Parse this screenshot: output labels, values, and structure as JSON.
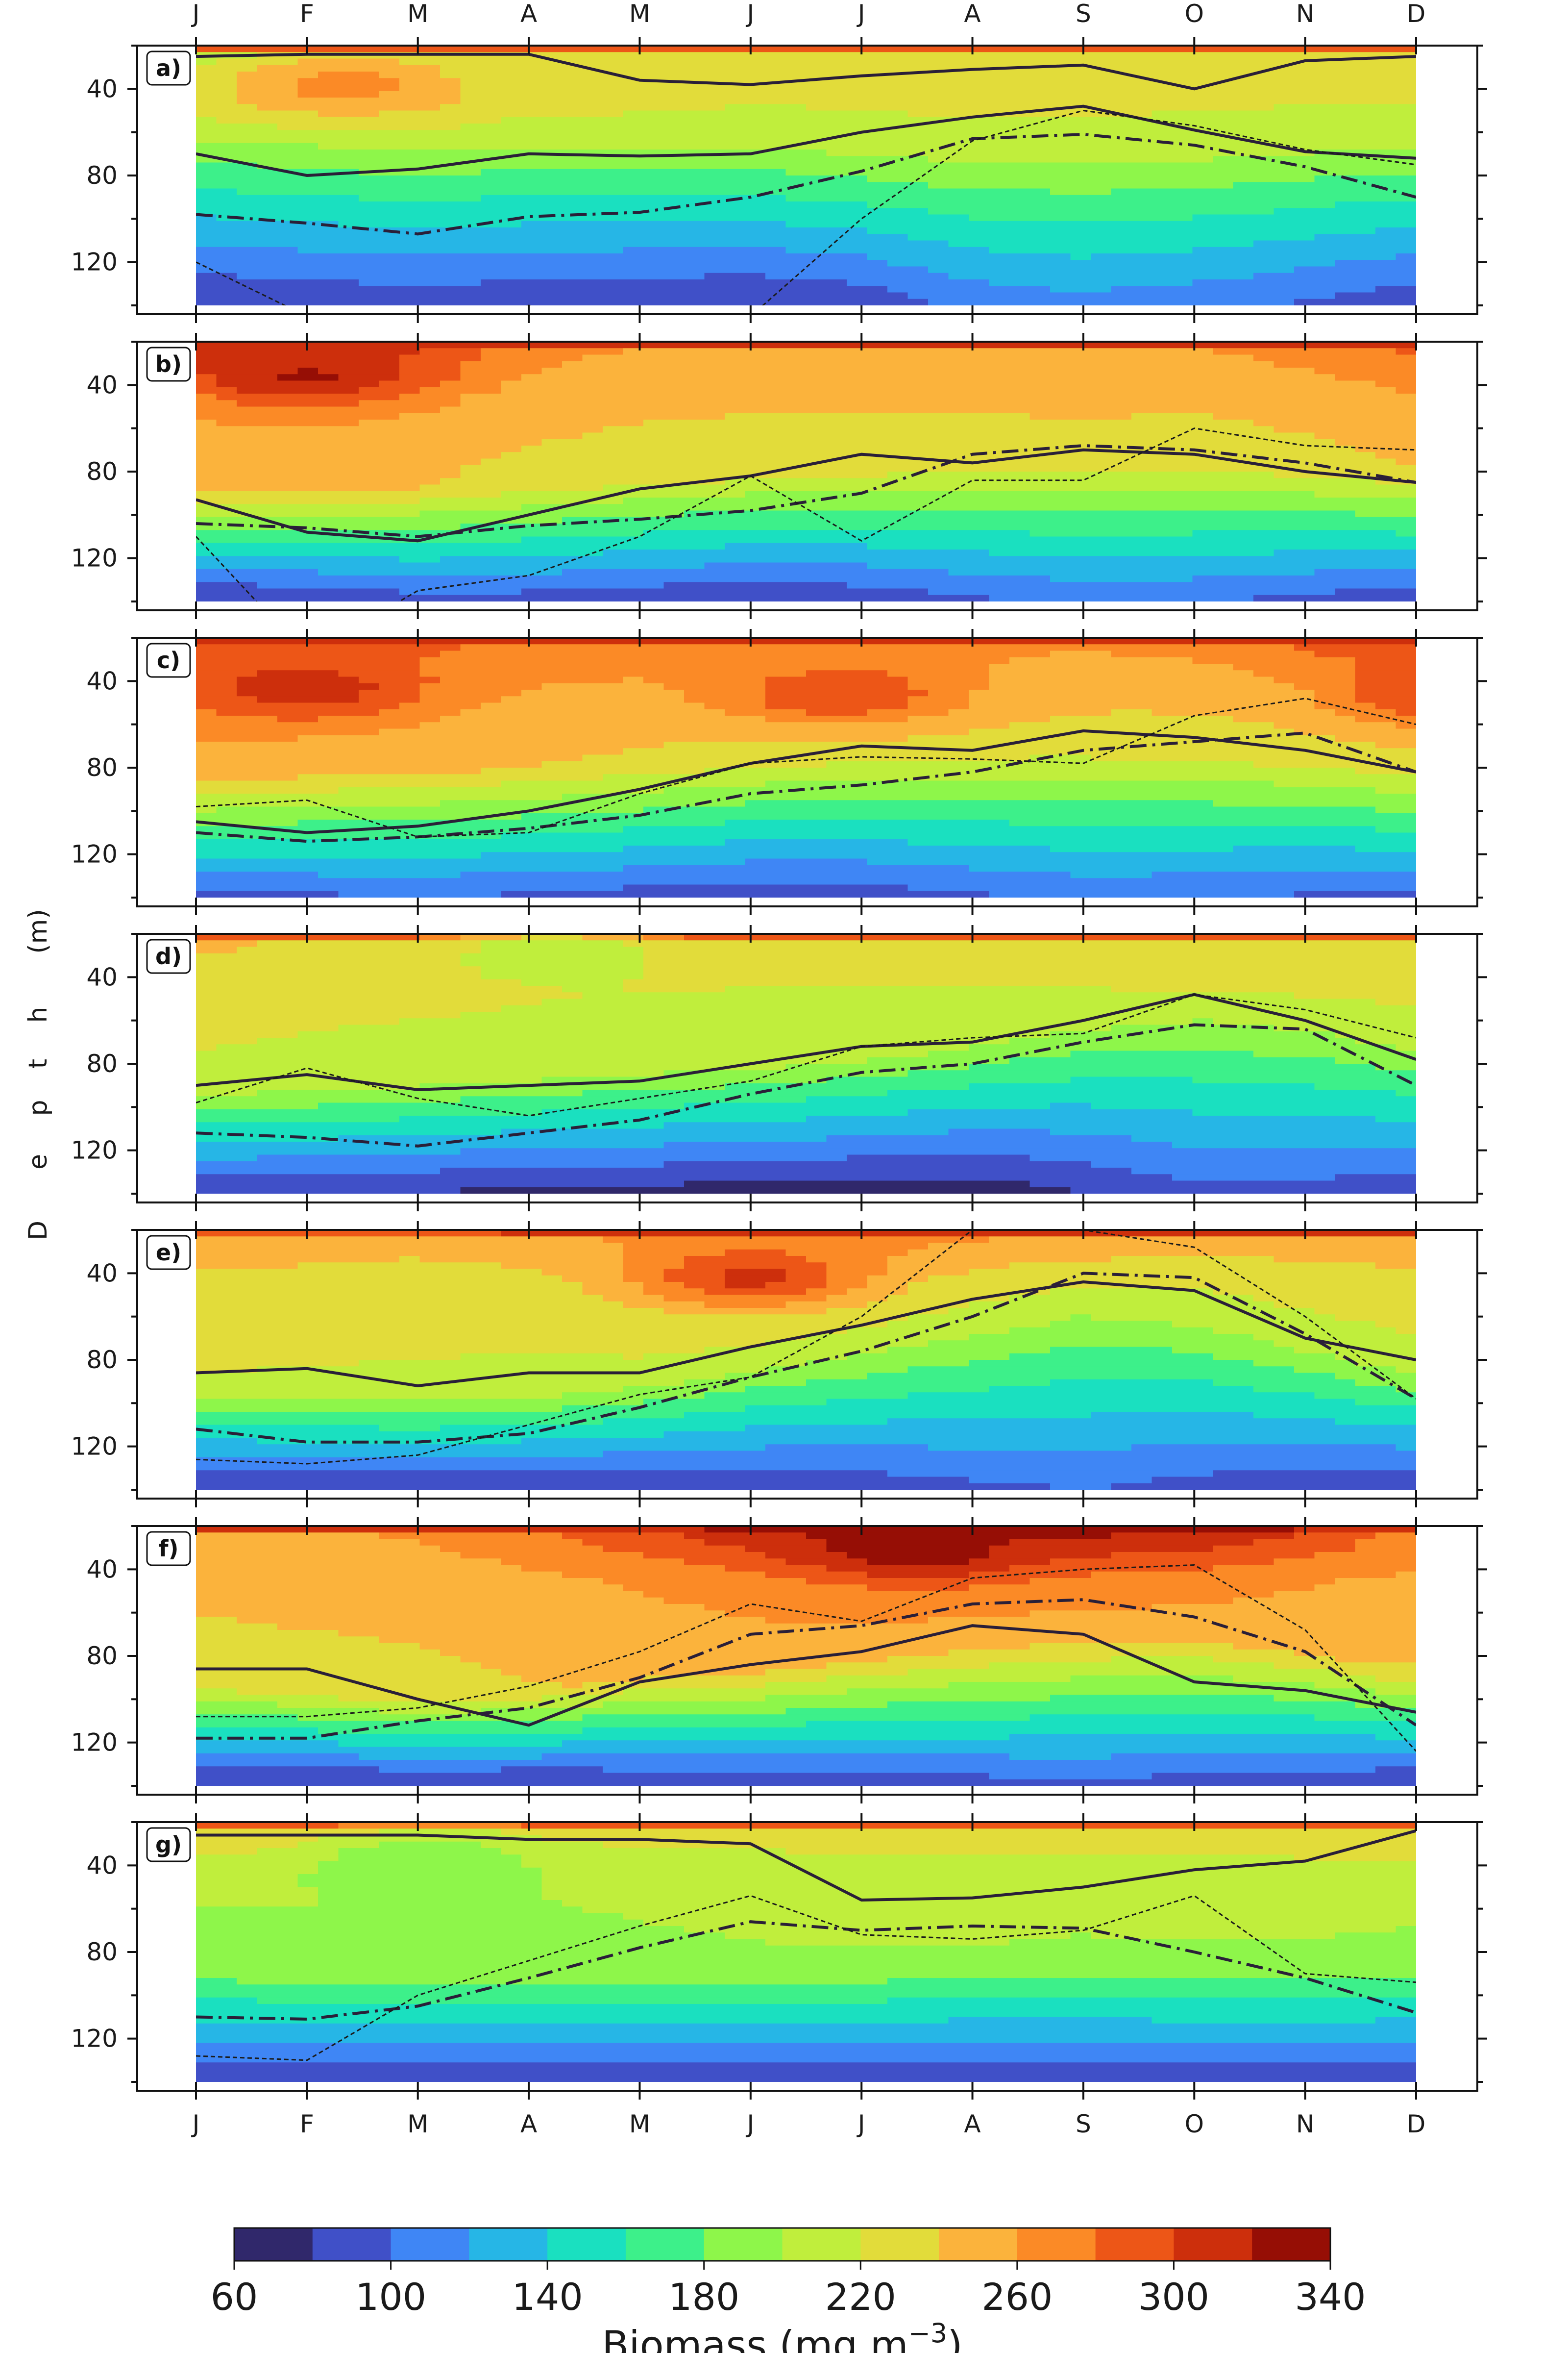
{
  "chart_data": {
    "type": "heatmap",
    "months": [
      "J",
      "F",
      "M",
      "A",
      "M",
      "J",
      "J",
      "A",
      "S",
      "O",
      "N",
      "D"
    ],
    "depth_ticks": [
      40,
      80,
      120
    ],
    "ylim": [
      20,
      140
    ],
    "ylabel_letters": [
      "D",
      "e",
      "p",
      "t",
      "h",
      "(m)"
    ],
    "colorbar": {
      "levels": [
        60,
        80,
        100,
        120,
        140,
        160,
        180,
        200,
        220,
        240,
        260,
        280,
        300,
        320,
        340
      ],
      "tick_labels": [
        "60",
        "100",
        "140",
        "180",
        "220",
        "260",
        "300",
        "340"
      ],
      "label": "Biomass (mg m",
      "label_exponent": "−3",
      "label_close": ")",
      "colors": [
        "#30286b",
        "#4050c8",
        "#3f86f5",
        "#26b6e6",
        "#1ae0c0",
        "#3df08a",
        "#8ef64a",
        "#c0ee3c",
        "#e2dc3a",
        "#fbb33c",
        "#fb8a26",
        "#ed5617",
        "#cd2f0c",
        "#960e05"
      ]
    },
    "panels": [
      {
        "label": "a)",
        "surface": [
          200,
          210,
          216,
          220,
          222,
          222,
          222,
          224,
          226,
          226,
          224,
          222
        ],
        "mid": [
          225,
          230,
          232,
          228,
          226,
          222,
          224,
          226,
          226,
          224,
          222,
          222
        ],
        "dcm_depth": [
          60,
          60,
          62,
          62,
          64,
          66,
          68,
          70,
          70,
          70,
          68,
          66
        ],
        "deep": [
          130,
          126,
          124,
          126,
          128,
          130,
          124,
          110,
          104,
          108,
          116,
          124
        ],
        "features": [
          {
            "month": 1.3,
            "depth": 38,
            "value": 268
          }
        ],
        "solid_line": [
          25,
          24,
          24,
          24,
          36,
          38,
          34,
          31,
          29,
          40,
          27,
          25
        ],
        "solid_line2": [
          70,
          80,
          77,
          70,
          71,
          70,
          60,
          53,
          48,
          59,
          69,
          72
        ],
        "dashdot_line": [
          98,
          102,
          107,
          99,
          97,
          90,
          78,
          63,
          61,
          66,
          76,
          90
        ],
        "dashed_line": [
          120,
          145,
          150,
          140,
          150,
          145,
          100,
          64,
          50,
          57,
          68,
          75
        ]
      },
      {
        "label": "b)",
        "surface": [
          300,
          300,
          295,
          268,
          258,
          256,
          258,
          258,
          256,
          258,
          268,
          282
        ],
        "mid": [
          262,
          262,
          258,
          250,
          246,
          244,
          244,
          244,
          246,
          244,
          250,
          258
        ],
        "dcm_depth": [
          88,
          88,
          88,
          86,
          84,
          82,
          80,
          78,
          78,
          78,
          78,
          80
        ],
        "deep": [
          130,
          126,
          120,
          120,
          124,
          128,
          124,
          116,
          110,
          112,
          118,
          124
        ],
        "features": [
          {
            "month": 1.0,
            "depth": 36,
            "value": 322
          }
        ],
        "solid_line": [
          93,
          108,
          112,
          100,
          88,
          82,
          72,
          76,
          70,
          72,
          80,
          85
        ],
        "dashdot_line": [
          104,
          106,
          110,
          105,
          102,
          98,
          90,
          72,
          68,
          70,
          76,
          85
        ],
        "dashed_line": [
          110,
          165,
          135,
          128,
          110,
          82,
          112,
          84,
          84,
          60,
          68,
          70
        ]
      },
      {
        "label": "c)",
        "surface": [
          296,
          292,
          282,
          276,
          270,
          264,
          262,
          264,
          262,
          266,
          282,
          296
        ],
        "mid": [
          270,
          266,
          262,
          258,
          254,
          250,
          248,
          248,
          246,
          246,
          248,
          252
        ],
        "dcm_depth": [
          84,
          82,
          82,
          80,
          78,
          76,
          74,
          72,
          72,
          74,
          76,
          80
        ],
        "deep": [
          118,
          116,
          114,
          116,
          120,
          124,
          122,
          116,
          110,
          112,
          116,
          118
        ],
        "features": [
          {
            "month": 1.0,
            "depth": 44,
            "value": 312
          },
          {
            "month": 5.8,
            "depth": 46,
            "value": 300
          },
          {
            "month": 11.3,
            "depth": 46,
            "value": 306
          }
        ],
        "solid_line": [
          105,
          110,
          107,
          100,
          90,
          78,
          70,
          72,
          63,
          66,
          72,
          82
        ],
        "dashdot_line": [
          110,
          114,
          112,
          108,
          102,
          92,
          88,
          82,
          72,
          68,
          64,
          82
        ],
        "dashed_line": [
          98,
          95,
          112,
          110,
          92,
          78,
          75,
          76,
          78,
          56,
          48,
          60
        ]
      },
      {
        "label": "d)",
        "surface": [
          244,
          238,
          236,
          234,
          232,
          230,
          232,
          234,
          234,
          236,
          238,
          240
        ],
        "mid": [
          232,
          228,
          226,
          224,
          222,
          220,
          220,
          220,
          220,
          222,
          224,
          226
        ],
        "dcm_depth": [
          90,
          90,
          88,
          86,
          84,
          82,
          78,
          72,
          64,
          58,
          62,
          70
        ],
        "deep": [
          126,
          128,
          130,
          132,
          134,
          136,
          138,
          138,
          130,
          118,
          120,
          124
        ],
        "features": [
          {
            "month": 3.2,
            "depth": 30,
            "value": 212
          }
        ],
        "solid_line": [
          90,
          85,
          92,
          90,
          88,
          80,
          72,
          70,
          60,
          48,
          60,
          78
        ],
        "dashdot_line": [
          112,
          114,
          118,
          112,
          106,
          94,
          84,
          80,
          70,
          62,
          64,
          90
        ],
        "dashed_line": [
          98,
          82,
          96,
          104,
          96,
          88,
          72,
          68,
          66,
          48,
          55,
          68
        ]
      },
      {
        "label": "e)",
        "surface": [
          250,
          248,
          246,
          252,
          262,
          268,
          268,
          262,
          256,
          250,
          252,
          256
        ],
        "mid": [
          236,
          234,
          232,
          232,
          234,
          234,
          232,
          228,
          222,
          222,
          228,
          232
        ],
        "dcm_depth": [
          92,
          94,
          96,
          94,
          88,
          80,
          72,
          64,
          58,
          62,
          72,
          82
        ],
        "deep": [
          128,
          128,
          128,
          128,
          128,
          128,
          124,
          118,
          114,
          120,
          126,
          128
        ],
        "features": [
          {
            "month": 5.0,
            "depth": 42,
            "value": 306
          }
        ],
        "solid_line": [
          86,
          84,
          92,
          86,
          86,
          74,
          64,
          52,
          44,
          48,
          70,
          80
        ],
        "dashdot_line": [
          112,
          118,
          118,
          114,
          102,
          88,
          76,
          60,
          40,
          42,
          68,
          98
        ],
        "dashed_line": [
          126,
          128,
          124,
          110,
          96,
          88,
          60,
          20,
          20,
          28,
          60,
          98
        ]
      },
      {
        "label": "f)",
        "surface": [
          254,
          258,
          262,
          272,
          294,
          312,
          322,
          320,
          322,
          318,
          300,
          270
        ],
        "mid": [
          246,
          248,
          250,
          256,
          262,
          268,
          270,
          270,
          270,
          268,
          262,
          256
        ],
        "dcm_depth": [
          94,
          96,
          100,
          96,
          90,
          86,
          80,
          74,
          70,
          70,
          78,
          88
        ],
        "deep": [
          130,
          130,
          130,
          130,
          128,
          126,
          124,
          120,
          118,
          120,
          124,
          128
        ],
        "features": [
          {
            "month": 6.5,
            "depth": 32,
            "value": 330
          }
        ],
        "solid_line": [
          86,
          86,
          100,
          112,
          92,
          84,
          78,
          66,
          70,
          92,
          96,
          106
        ],
        "dashdot_line": [
          118,
          118,
          110,
          104,
          90,
          70,
          66,
          56,
          54,
          62,
          78,
          112
        ],
        "dashed_line": [
          108,
          108,
          104,
          94,
          78,
          56,
          64,
          44,
          40,
          38,
          68,
          124
        ]
      },
      {
        "label": "g)",
        "surface": [
          240,
          242,
          236,
          232,
          228,
          226,
          226,
          226,
          228,
          230,
          232,
          236
        ],
        "mid": [
          206,
          206,
          204,
          204,
          208,
          212,
          214,
          214,
          212,
          212,
          212,
          210
        ],
        "dcm_depth": [
          90,
          92,
          94,
          94,
          92,
          90,
          88,
          86,
          86,
          88,
          88,
          88
        ],
        "deep": [
          124,
          124,
          124,
          126,
          126,
          126,
          124,
          124,
          124,
          124,
          124,
          124
        ],
        "features": [
          {
            "month": 2.0,
            "depth": 38,
            "value": 184
          }
        ],
        "solid_line": [
          26,
          26,
          26,
          28,
          28,
          30,
          56,
          55,
          50,
          42,
          38,
          24
        ],
        "dashdot_line": [
          110,
          111,
          105,
          92,
          78,
          66,
          70,
          68,
          69,
          80,
          92,
          108
        ],
        "dashed_line": [
          128,
          130,
          100,
          84,
          68,
          54,
          72,
          74,
          70,
          54,
          90,
          94
        ]
      }
    ]
  }
}
